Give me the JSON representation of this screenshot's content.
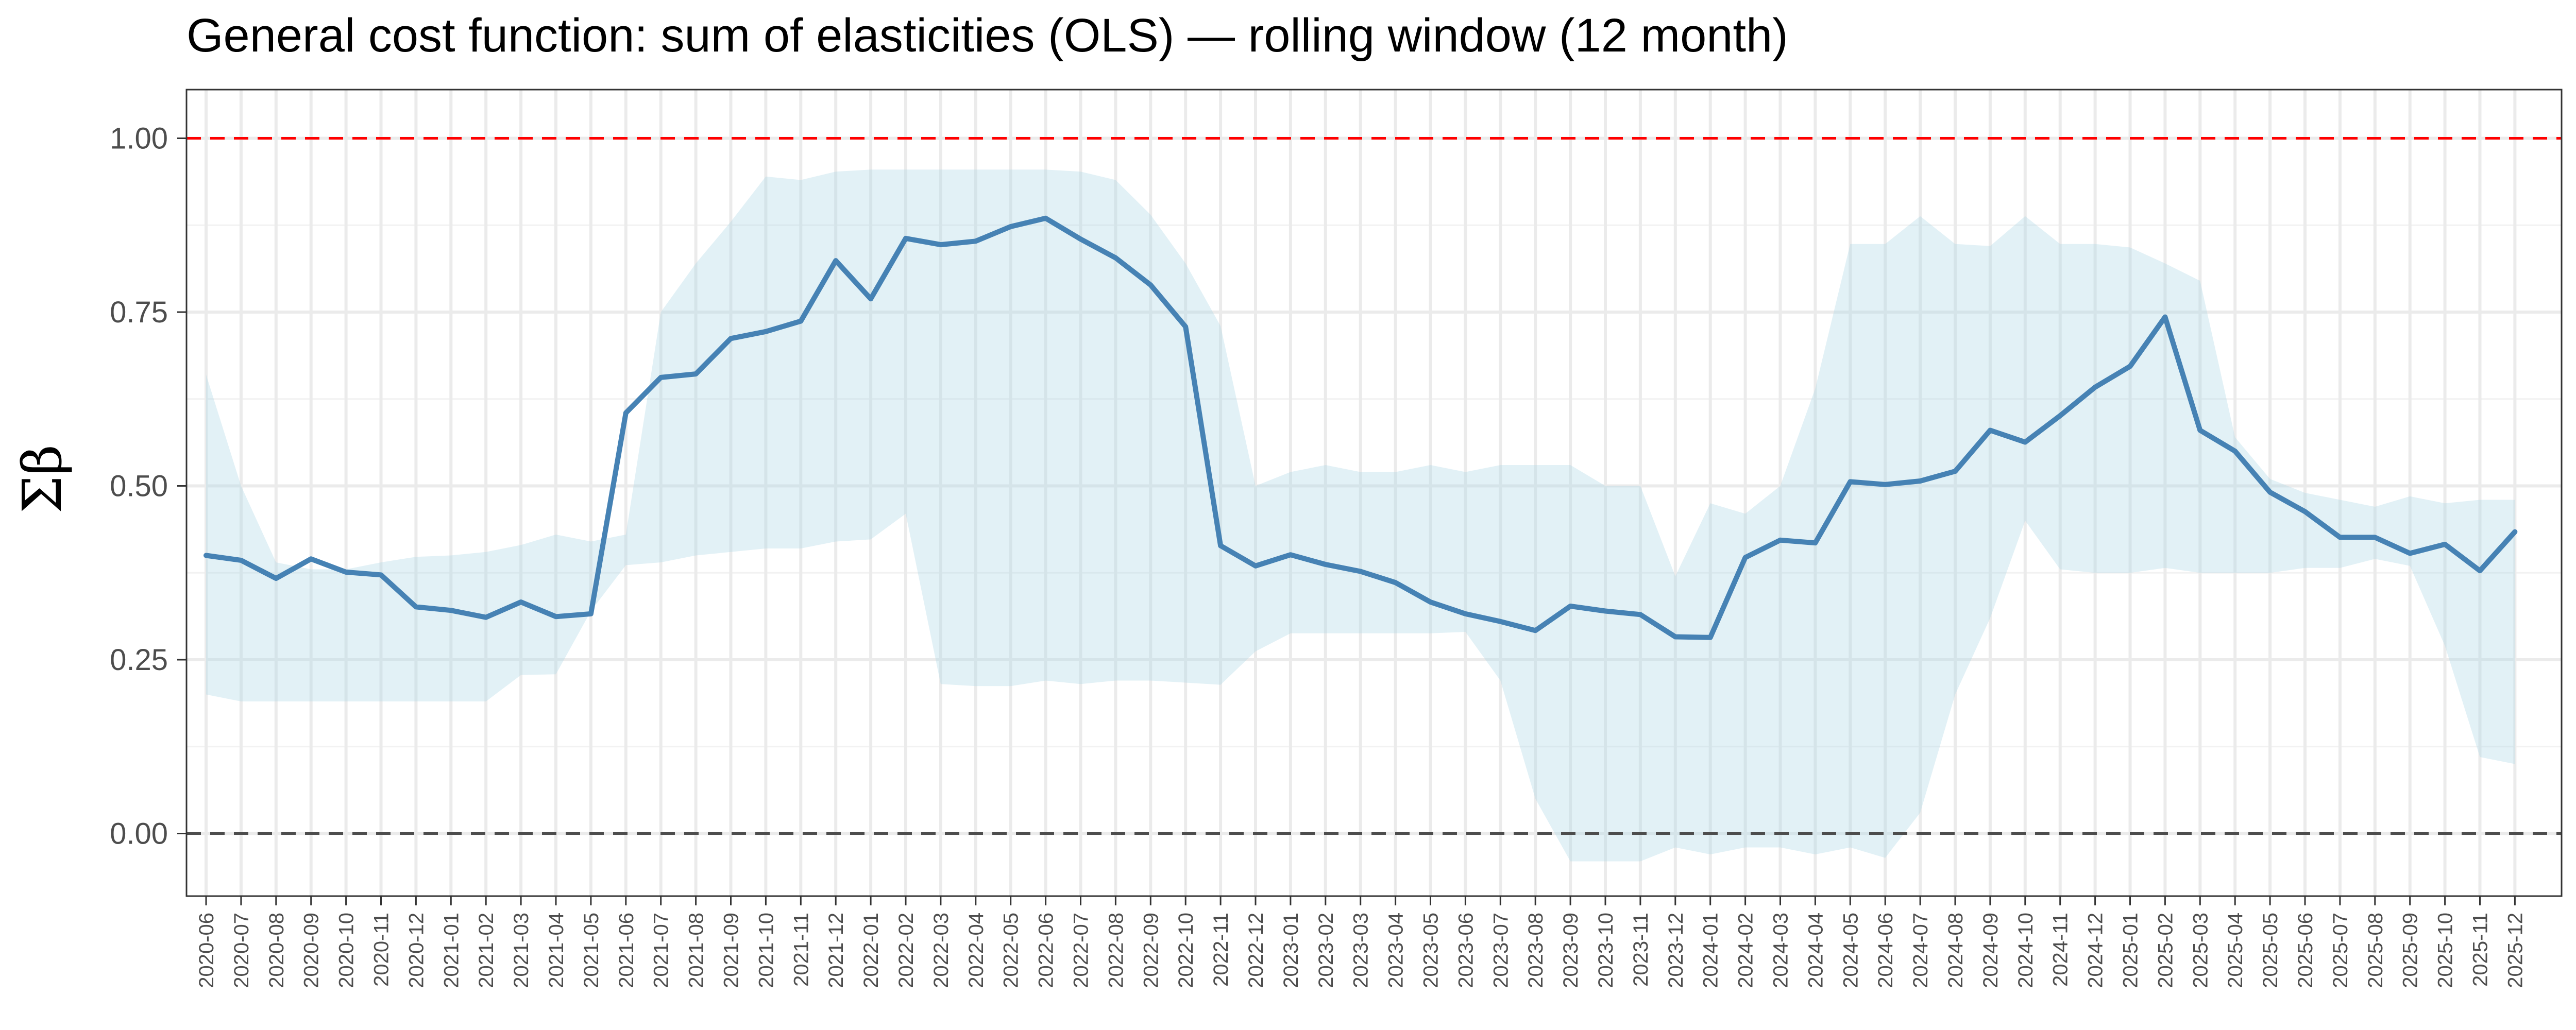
{
  "chart_data": {
    "type": "line",
    "title": "General cost function: sum of elasticities (OLS) — rolling window (12 month)",
    "ylabel": "Σβ",
    "xlabel": "",
    "ylim": [
      -0.09,
      1.07
    ],
    "y_ticks": [
      "0.00",
      "0.25",
      "0.50",
      "0.75",
      "1.00"
    ],
    "y_tick_values": [
      0,
      0.25,
      0.5,
      0.75,
      1.0
    ],
    "grid": true,
    "reference_lines": [
      {
        "y": 1.0,
        "color": "#ff0000",
        "style": "dashed"
      },
      {
        "y": 0.0,
        "color": "#4d4d4d",
        "style": "dashed"
      }
    ],
    "line_color": "#4682b4",
    "ribbon_color": "#add8e6",
    "x": [
      "2020-06",
      "2020-07",
      "2020-08",
      "2020-09",
      "2020-10",
      "2020-11",
      "2020-12",
      "2021-01",
      "2021-02",
      "2021-03",
      "2021-04",
      "2021-05",
      "2021-06",
      "2021-07",
      "2021-08",
      "2021-09",
      "2021-10",
      "2021-11",
      "2021-12",
      "2022-01",
      "2022-02",
      "2022-03",
      "2022-04",
      "2022-05",
      "2022-06",
      "2022-07",
      "2022-08",
      "2022-09",
      "2022-10",
      "2022-11",
      "2022-12",
      "2023-01",
      "2023-02",
      "2023-03",
      "2023-04",
      "2023-05",
      "2023-06",
      "2023-07",
      "2023-08",
      "2023-09",
      "2023-10",
      "2023-11",
      "2023-12",
      "2024-01",
      "2024-02",
      "2024-03",
      "2024-04",
      "2024-05",
      "2024-06",
      "2024-07",
      "2024-08",
      "2024-09",
      "2024-10",
      "2024-11",
      "2024-12",
      "2025-01",
      "2025-02",
      "2025-03",
      "2025-04",
      "2025-05",
      "2025-06",
      "2025-07",
      "2025-08",
      "2025-09",
      "2025-10",
      "2025-11",
      "2025-12"
    ],
    "series": [
      {
        "values": [
          0.4,
          0.393,
          0.367,
          0.395,
          0.376,
          0.372,
          0.326,
          0.321,
          0.311,
          0.333,
          0.312,
          0.316,
          0.605,
          0.656,
          0.661,
          0.712,
          0.722,
          0.737,
          0.824,
          0.769,
          0.856,
          0.847,
          0.852,
          0.873,
          0.885,
          0.855,
          0.828,
          0.789,
          0.729,
          0.414,
          0.385,
          0.401,
          0.387,
          0.377,
          0.361,
          0.333,
          0.316,
          0.305,
          0.292,
          0.327,
          0.32,
          0.315,
          0.283,
          0.282,
          0.397,
          0.422,
          0.418,
          0.506,
          0.502,
          0.507,
          0.521,
          0.58,
          0.563,
          0.601,
          0.642,
          0.672,
          0.743,
          0.58,
          0.55,
          0.491,
          0.463,
          0.426,
          0.426,
          0.403,
          0.416,
          0.378,
          0.434
        ],
        "lower": [
          0.2,
          0.19,
          0.19,
          0.19,
          0.19,
          0.19,
          0.19,
          0.19,
          0.19,
          0.228,
          0.229,
          0.32,
          0.386,
          0.39,
          0.4,
          0.405,
          0.41,
          0.41,
          0.42,
          0.423,
          0.46,
          0.215,
          0.212,
          0.212,
          0.22,
          0.215,
          0.22,
          0.22,
          0.217,
          0.214,
          0.262,
          0.288,
          0.288,
          0.288,
          0.288,
          0.288,
          0.29,
          0.22,
          0.05,
          -0.04,
          -0.04,
          -0.04,
          -0.02,
          -0.03,
          -0.02,
          -0.02,
          -0.03,
          -0.02,
          -0.035,
          0.03,
          0.2,
          0.31,
          0.45,
          0.38,
          0.375,
          0.375,
          0.382,
          0.375,
          0.375,
          0.375,
          0.382,
          0.382,
          0.395,
          0.385,
          0.27,
          0.11,
          0.1
        ],
        "upper": [
          0.66,
          0.5,
          0.39,
          0.38,
          0.38,
          0.39,
          0.398,
          0.4,
          0.405,
          0.415,
          0.43,
          0.42,
          0.43,
          0.75,
          0.82,
          0.88,
          0.945,
          0.94,
          0.952,
          0.955,
          0.955,
          0.955,
          0.955,
          0.955,
          0.955,
          0.952,
          0.94,
          0.89,
          0.82,
          0.73,
          0.5,
          0.52,
          0.53,
          0.52,
          0.52,
          0.53,
          0.52,
          0.53,
          0.53,
          0.53,
          0.5,
          0.5,
          0.37,
          0.475,
          0.46,
          0.5,
          0.64,
          0.848,
          0.848,
          0.888,
          0.848,
          0.845,
          0.888,
          0.848,
          0.848,
          0.843,
          0.82,
          0.795,
          0.57,
          0.51,
          0.49,
          0.48,
          0.47,
          0.485,
          0.475,
          0.48,
          0.48
        ]
      }
    ]
  }
}
